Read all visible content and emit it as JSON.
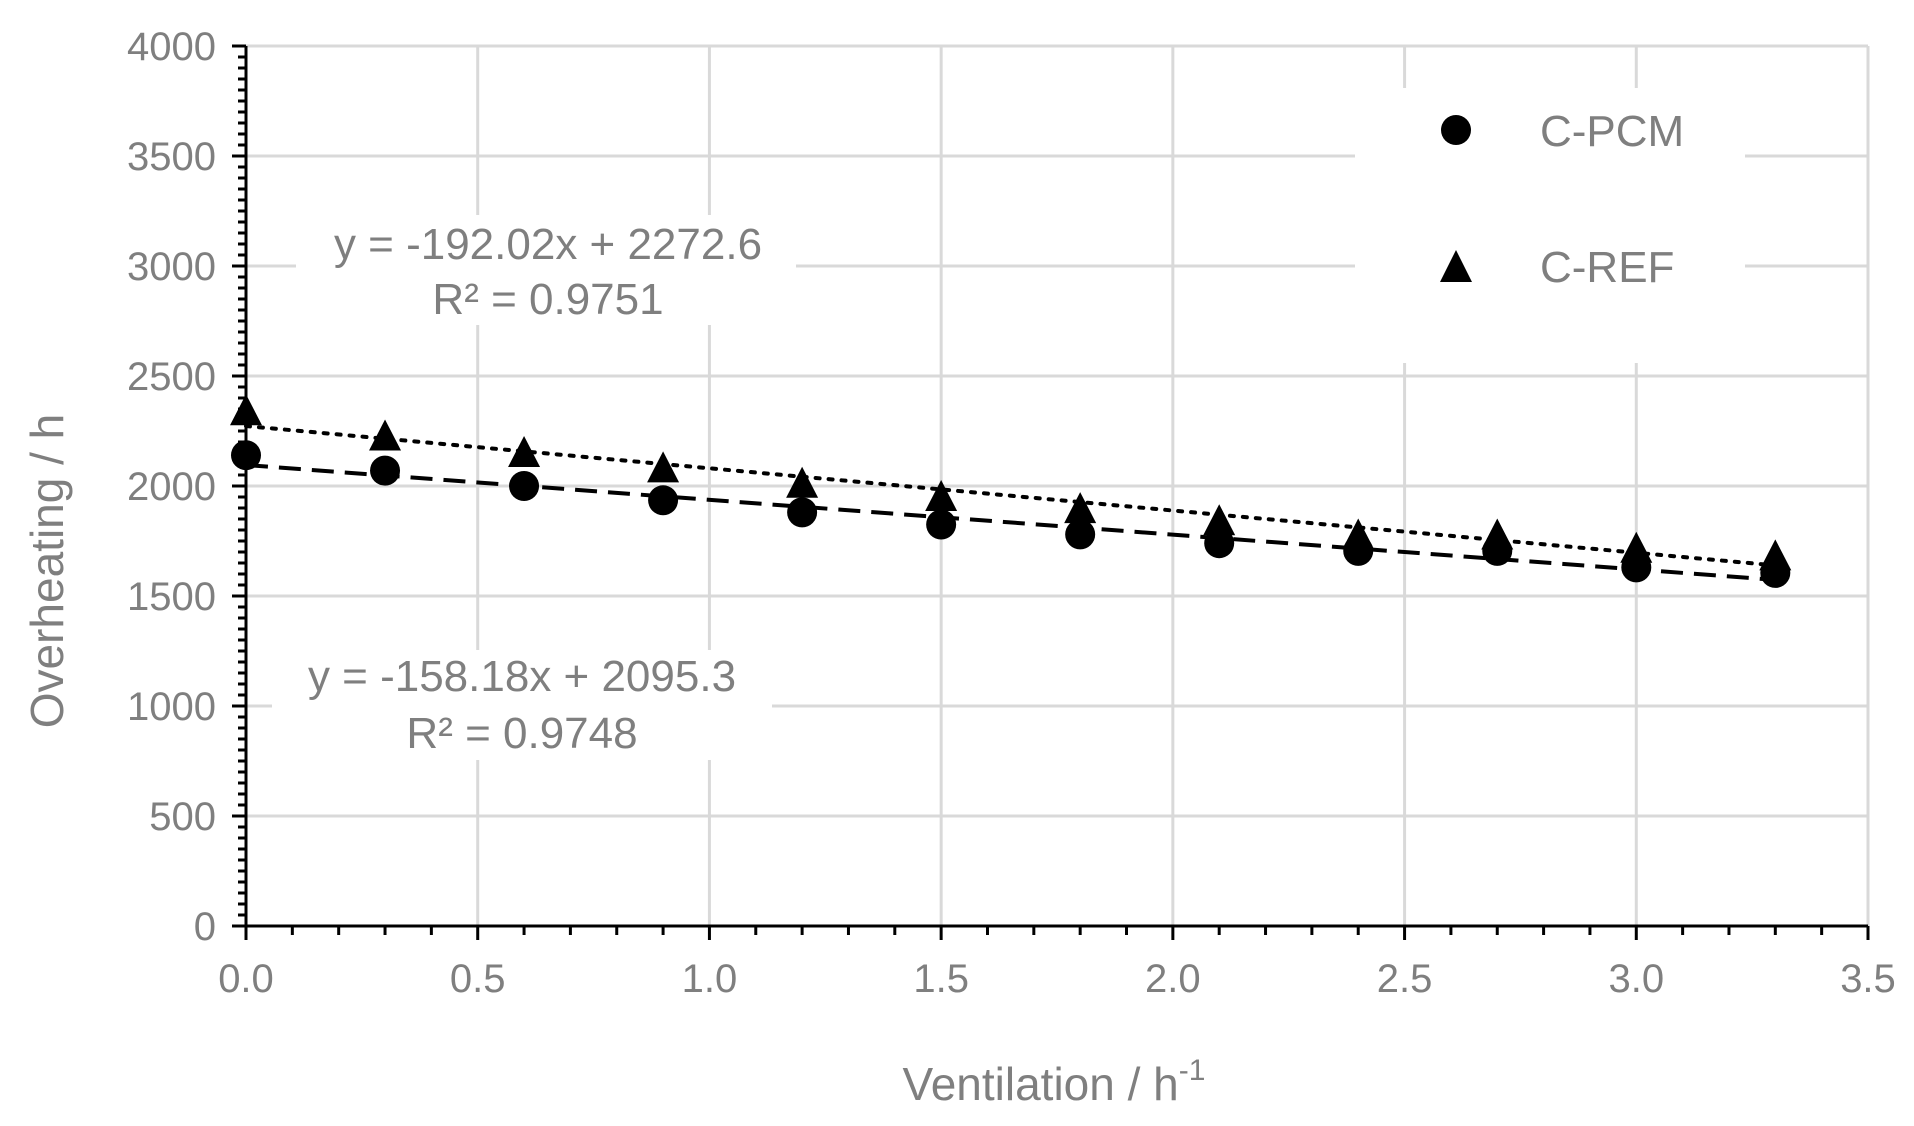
{
  "chart_data": {
    "type": "scatter",
    "title": "",
    "xlabel": "Ventilation / h",
    "xlabel_sup": "-1",
    "ylabel": "Overheating / h",
    "xlim": [
      0,
      3.5
    ],
    "ylim": [
      0,
      4000
    ],
    "x_ticks": [
      "0.0",
      "0.5",
      "1.0",
      "1.5",
      "2.0",
      "2.5",
      "3.0",
      "3.5"
    ],
    "y_ticks": [
      "0",
      "500",
      "1000",
      "1500",
      "2000",
      "2500",
      "3000",
      "3500",
      "4000"
    ],
    "grid": true,
    "legend_position": "top-right",
    "x": [
      0.0,
      0.3,
      0.6,
      0.9,
      1.2,
      1.5,
      1.8,
      2.1,
      2.4,
      2.7,
      3.0,
      3.3
    ],
    "series": [
      {
        "name": "C-PCM",
        "marker": "circle",
        "values": [
          2140,
          2070,
          2000,
          1935,
          1880,
          1825,
          1780,
          1740,
          1705,
          1705,
          1630,
          1605
        ],
        "trendline": {
          "slope": -158.18,
          "intercept": 2095.3,
          "style": "dashed",
          "equation": "y = -158.18x + 2095.3",
          "r2": "R² = 0.9748"
        }
      },
      {
        "name": "C-REF",
        "marker": "triangle",
        "values": [
          2340,
          2225,
          2150,
          2080,
          2010,
          1950,
          1895,
          1840,
          1775,
          1775,
          1715,
          1680
        ],
        "trendline": {
          "slope": -192.02,
          "intercept": 2272.6,
          "style": "dotted",
          "equation": "y = -192.02x + 2272.6",
          "r2": "R² = 0.9751"
        }
      }
    ]
  }
}
